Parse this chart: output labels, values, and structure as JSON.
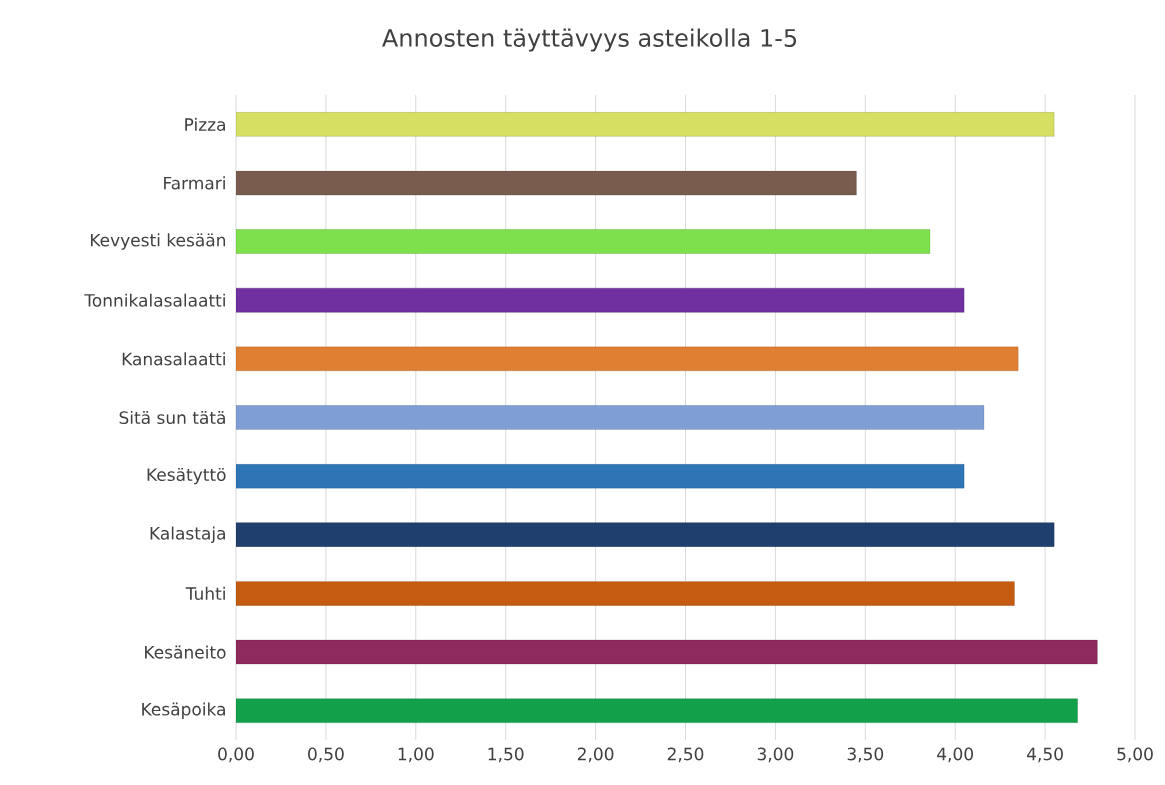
{
  "chart_data": {
    "type": "bar",
    "orientation": "horizontal",
    "title": "Annosten täyttävyys asteikolla 1-5",
    "categories": [
      "Pizza",
      "Farmari",
      "Kevyesti kesään",
      "Tonnikalasalaatti",
      "Kanasalaatti",
      "Sitä sun tätä",
      "Kesätyttö",
      "Kalastaja",
      "Tuhti",
      "Kesäneito",
      "Kesäpoika"
    ],
    "values": [
      4.55,
      3.45,
      3.86,
      4.05,
      4.35,
      4.16,
      4.05,
      4.55,
      4.33,
      4.79,
      4.68
    ],
    "colors": [
      "#d6df62",
      "#7a5c4e",
      "#7ee04a",
      "#7030a0",
      "#e07f32",
      "#7f9fd4",
      "#2e75b6",
      "#1f3f6e",
      "#c55a11",
      "#8e2a5e",
      "#12a14a"
    ],
    "xlim": [
      0,
      5
    ],
    "xticks": [
      {
        "value": 0,
        "label": "0,00"
      },
      {
        "value": 0.5,
        "label": "0,50"
      },
      {
        "value": 1,
        "label": "1,00"
      },
      {
        "value": 1.5,
        "label": "1,50"
      },
      {
        "value": 2,
        "label": "2,00"
      },
      {
        "value": 2.5,
        "label": "2,50"
      },
      {
        "value": 3,
        "label": "3,00"
      },
      {
        "value": 3.5,
        "label": "3,50"
      },
      {
        "value": 4,
        "label": "4,00"
      },
      {
        "value": 4.5,
        "label": "4,50"
      },
      {
        "value": 5,
        "label": "5,00"
      }
    ],
    "grid": "x"
  }
}
